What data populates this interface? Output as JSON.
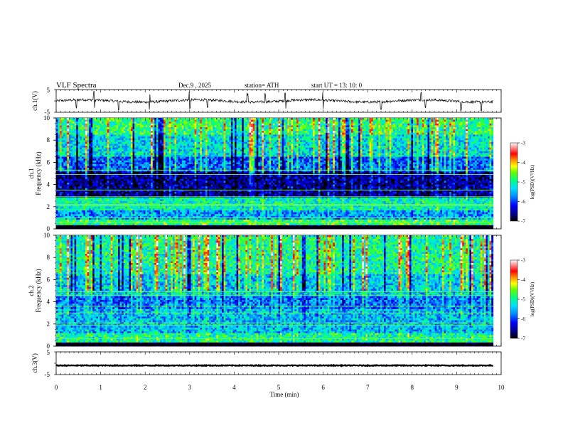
{
  "header": {
    "title": "VLF Spectra",
    "date": "Dec.9  , 2025",
    "station": "station= ATH",
    "start": "start UT =   13: 10: 0"
  },
  "chart_data": [
    {
      "type": "line",
      "name": "ch1-waveform",
      "ylabel": "ch.1(V)",
      "ylim": [
        -5,
        5
      ],
      "yticks": [
        "5",
        "-5"
      ],
      "xlim": [
        0,
        10
      ],
      "baseline": 0,
      "spike_times_min": [
        0.45,
        0.85,
        1.4,
        2.1,
        3.0,
        3.4,
        4.3,
        4.7,
        5.15,
        6.0,
        7.3,
        8.2,
        8.3,
        9.1,
        9.55
      ]
    },
    {
      "type": "heatmap",
      "name": "ch1-spectrogram",
      "ylabel": "ch.1\nFrequency (kHz)",
      "ylim": [
        0,
        10
      ],
      "yticks": [
        "0",
        "2",
        "4",
        "6",
        "8",
        "10"
      ],
      "xlim": [
        0,
        9.82
      ],
      "colorbar": {
        "label": "log(PSD)(V²/Hz)",
        "ticks": [
          "-3",
          "-4",
          "-5",
          "-6",
          "-7"
        ],
        "range": [
          -7,
          -3
        ]
      },
      "bands_khz": [
        {
          "from": 0.0,
          "to": 0.3,
          "level": -6.9
        },
        {
          "from": 0.3,
          "to": 0.9,
          "level": -4.8
        },
        {
          "from": 0.9,
          "to": 1.6,
          "level": -5.6
        },
        {
          "from": 1.6,
          "to": 2.8,
          "level": -5.1
        },
        {
          "from": 2.8,
          "to": 5.2,
          "level": -6.6
        },
        {
          "from": 5.2,
          "to": 6.5,
          "level": -5.9
        },
        {
          "from": 6.5,
          "to": 8.5,
          "level": -5.3
        },
        {
          "from": 8.5,
          "to": 10.0,
          "level": -4.9
        }
      ],
      "tones_khz": [
        0.6,
        1.0,
        2.1,
        2.2,
        2.9,
        3.5,
        4.9,
        5.3
      ]
    },
    {
      "type": "heatmap",
      "name": "ch2-spectrogram",
      "ylabel": "ch.2\nFrequency (kHz)",
      "ylim": [
        0,
        10
      ],
      "yticks": [
        "0",
        "2",
        "4",
        "6",
        "8",
        "10"
      ],
      "xlim": [
        0,
        9.82
      ],
      "colorbar": {
        "label": "log(PSD)(V²/Hz)",
        "ticks": [
          "-3",
          "-4",
          "-5",
          "-6",
          "-7"
        ],
        "range": [
          -7,
          -3
        ]
      },
      "bands_khz": [
        {
          "from": 0.0,
          "to": 0.3,
          "level": -6.9
        },
        {
          "from": 0.3,
          "to": 1.2,
          "level": -5.0
        },
        {
          "from": 1.2,
          "to": 3.4,
          "level": -5.5
        },
        {
          "from": 3.4,
          "to": 4.5,
          "level": -5.8
        },
        {
          "from": 4.5,
          "to": 6.5,
          "level": -5.4
        },
        {
          "from": 6.5,
          "to": 10.0,
          "level": -5.0
        }
      ],
      "tones_khz": [
        0.7,
        1.9,
        2.1,
        3.0,
        3.6,
        4.6,
        4.9
      ]
    },
    {
      "type": "line",
      "name": "ch3-waveform",
      "ylabel": "ch.3(V)",
      "ylim": [
        -5,
        5
      ],
      "yticks": [
        "5",
        "-5"
      ],
      "xlim": [
        0,
        10
      ],
      "baseline": -1.0
    }
  ],
  "xaxis": {
    "label": "Time (min)",
    "ticks": [
      "0",
      "1",
      "2",
      "3",
      "4",
      "5",
      "6",
      "7",
      "8",
      "9",
      "10"
    ],
    "range": [
      0,
      10
    ]
  }
}
